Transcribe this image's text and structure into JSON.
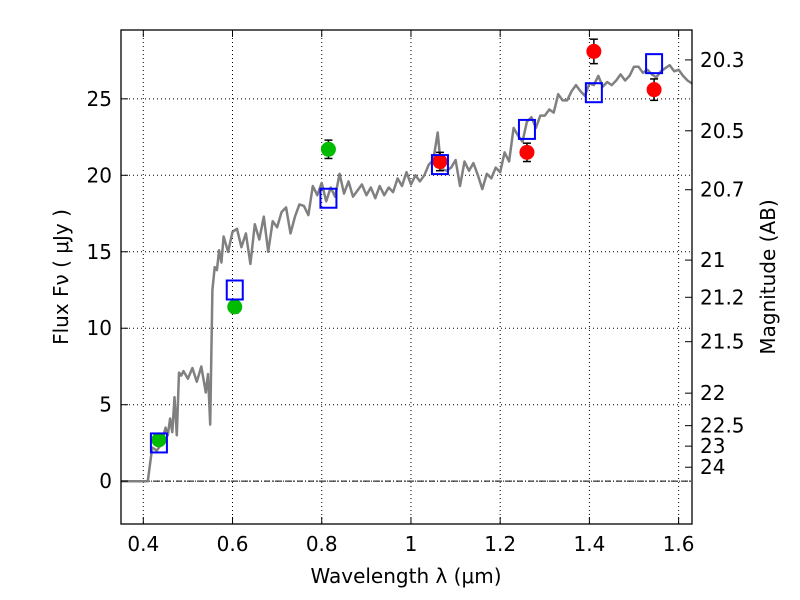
{
  "chart_data": {
    "type": "scatter",
    "xlabel": "Wavelength  λ (μm)",
    "ylabel": "Flux  Fν  ( μJy )",
    "ylabel_right": "Magnitude (AB)",
    "xlim": [
      0.35,
      1.63
    ],
    "ylim": [
      -2.8,
      29.5
    ],
    "x_ticks": [
      0.4,
      0.6,
      0.8,
      1.0,
      1.2,
      1.4,
      1.6
    ],
    "x_tick_labels": [
      "0.4",
      "0.6",
      "0.8",
      "1",
      "1.2",
      "1.4",
      "1.6"
    ],
    "y_ticks": [
      0,
      5,
      10,
      15,
      20,
      25
    ],
    "y_tick_labels": [
      "0",
      "5",
      "10",
      "15",
      "20",
      "25"
    ],
    "mag_ticks": [
      20.3,
      20.5,
      20.7,
      21,
      21.2,
      21.5,
      22,
      22.5,
      23,
      24
    ],
    "mag_tick_labels": [
      "20.3",
      "20.5",
      "20.7",
      "21",
      "21.2",
      "21.5",
      "22",
      "22.5",
      "23",
      "24"
    ],
    "grid": true,
    "series": [
      {
        "kind": "line",
        "color": "#808080",
        "x": [
          0.35,
          0.41,
          0.42,
          0.43,
          0.44,
          0.45,
          0.455,
          0.46,
          0.465,
          0.47,
          0.475,
          0.48,
          0.485,
          0.49,
          0.5,
          0.51,
          0.52,
          0.53,
          0.54,
          0.545,
          0.55,
          0.555,
          0.56,
          0.565,
          0.57,
          0.575,
          0.58,
          0.59,
          0.6,
          0.61,
          0.62,
          0.63,
          0.64,
          0.65,
          0.66,
          0.67,
          0.68,
          0.69,
          0.7,
          0.71,
          0.72,
          0.73,
          0.74,
          0.75,
          0.76,
          0.77,
          0.78,
          0.79,
          0.8,
          0.81,
          0.82,
          0.83,
          0.84,
          0.85,
          0.86,
          0.87,
          0.88,
          0.89,
          0.9,
          0.91,
          0.92,
          0.93,
          0.94,
          0.95,
          0.96,
          0.97,
          0.98,
          0.99,
          1.0,
          1.01,
          1.02,
          1.03,
          1.04,
          1.05,
          1.06,
          1.065,
          1.07,
          1.08,
          1.09,
          1.1,
          1.11,
          1.12,
          1.13,
          1.14,
          1.15,
          1.16,
          1.17,
          1.18,
          1.19,
          1.2,
          1.21,
          1.22,
          1.23,
          1.24,
          1.25,
          1.26,
          1.27,
          1.28,
          1.29,
          1.3,
          1.31,
          1.32,
          1.33,
          1.34,
          1.35,
          1.36,
          1.37,
          1.38,
          1.39,
          1.4,
          1.41,
          1.42,
          1.43,
          1.44,
          1.45,
          1.46,
          1.47,
          1.48,
          1.49,
          1.5,
          1.51,
          1.52,
          1.53,
          1.54,
          1.55,
          1.56,
          1.57,
          1.58,
          1.59,
          1.6,
          1.61,
          1.62,
          1.63
        ],
        "y": [
          0,
          0,
          2.2,
          2.0,
          2.4,
          3.5,
          3.0,
          4.1,
          3.2,
          5.5,
          3.0,
          7.1,
          6.9,
          7.2,
          6.7,
          7.4,
          6.5,
          7.5,
          5.8,
          7.0,
          3.7,
          12.5,
          14.0,
          13.8,
          15.1,
          14.3,
          16.0,
          15.0,
          16.3,
          16.5,
          15.3,
          16.2,
          14.2,
          16.8,
          15.8,
          17.3,
          15.0,
          17.0,
          16.6,
          17.6,
          17.9,
          16.2,
          17.3,
          18.1,
          18.0,
          17.4,
          19.3,
          18.7,
          19.5,
          18.3,
          19.2,
          18.6,
          20.1,
          18.8,
          19.6,
          18.6,
          19.0,
          19.4,
          18.7,
          19.2,
          18.5,
          19.3,
          18.7,
          19.2,
          18.9,
          19.8,
          19.3,
          20.2,
          19.4,
          20.0,
          19.6,
          20.0,
          20.7,
          21.0,
          22.8,
          21.2,
          20.4,
          20.3,
          20.5,
          21.0,
          19.3,
          20.9,
          20.3,
          20.8,
          20.0,
          19.1,
          20.1,
          19.8,
          20.5,
          20.2,
          21.5,
          20.9,
          23.1,
          22.6,
          22.2,
          23.5,
          23.8,
          23.1,
          23.9,
          23.9,
          24.3,
          24.1,
          25.3,
          24.9,
          24.9,
          25.5,
          25.9,
          25.5,
          25.2,
          26.0,
          25.9,
          26.5,
          25.8,
          26.1,
          25.9,
          26.2,
          26.6,
          26.2,
          26.5,
          27.1,
          27.1,
          26.7,
          26.9,
          26.6,
          26.4,
          26.8,
          27.0,
          27.2,
          26.8,
          26.9,
          26.5,
          26.2,
          26.0
        ]
      },
      {
        "kind": "points",
        "marker": "circle",
        "color": "#00bb00",
        "x": [
          0.435,
          0.605,
          0.815
        ],
        "y": [
          2.7,
          11.4,
          21.7
        ],
        "err": [
          0.2,
          0.4,
          0.6
        ]
      },
      {
        "kind": "points",
        "marker": "circle",
        "color": "#ff0000",
        "x": [
          1.065,
          1.26,
          1.41,
          1.545
        ],
        "y": [
          20.9,
          21.5,
          28.1,
          25.6
        ],
        "err": [
          0.6,
          0.6,
          0.8,
          0.7
        ]
      },
      {
        "kind": "points",
        "marker": "open-square",
        "color": "#0000ff",
        "x": [
          0.435,
          0.605,
          0.815,
          1.065,
          1.26,
          1.41,
          1.545
        ],
        "y": [
          2.5,
          12.5,
          18.5,
          20.7,
          23.0,
          25.4,
          27.3
        ]
      }
    ]
  }
}
